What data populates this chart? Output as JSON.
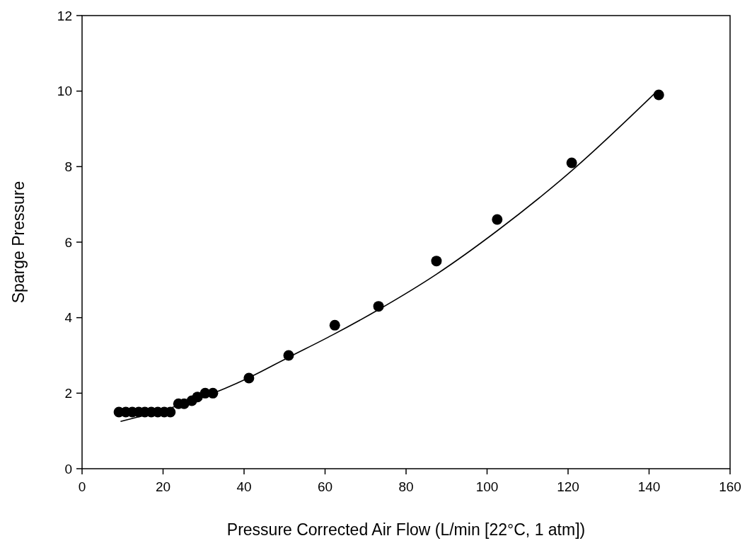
{
  "chart_data": {
    "type": "scatter",
    "xlabel": "Pressure Corrected Air Flow (L/min [22°C, 1 atm])",
    "ylabel": "Sparge Pressure",
    "xlim": [
      0,
      160
    ],
    "xticks": [
      0,
      20,
      40,
      60,
      80,
      100,
      120,
      140,
      160
    ],
    "ylim": [
      0,
      12
    ],
    "yticks": [
      0,
      2,
      4,
      6,
      8,
      10,
      12
    ],
    "grid": false,
    "series": [
      {
        "color": "#000000",
        "marker": "circle",
        "x": [
          9.1,
          10.8,
          12.4,
          14.0,
          15.5,
          17.1,
          18.7,
          20.3,
          21.8,
          23.8,
          25.2,
          27.1,
          28.5,
          30.4,
          32.3,
          41.2,
          51.0,
          62.4,
          73.2,
          87.5,
          102.5,
          120.9,
          142.4
        ],
        "values": [
          1.5,
          1.5,
          1.5,
          1.5,
          1.5,
          1.5,
          1.5,
          1.5,
          1.5,
          1.72,
          1.72,
          1.8,
          1.9,
          2.0,
          2.0,
          2.4,
          3.0,
          3.8,
          4.3,
          5.5,
          6.6,
          8.1,
          9.9
        ]
      },
      {
        "type": "line",
        "color": "#000000",
        "line_style": "solid",
        "x": [
          9.5,
          20,
          30,
          41,
          51,
          62,
          73,
          87.5,
          102.5,
          121,
          142
        ],
        "values": [
          1.25,
          1.55,
          1.9,
          2.4,
          2.95,
          3.55,
          4.2,
          5.15,
          6.3,
          7.9,
          10.0
        ]
      }
    ]
  }
}
